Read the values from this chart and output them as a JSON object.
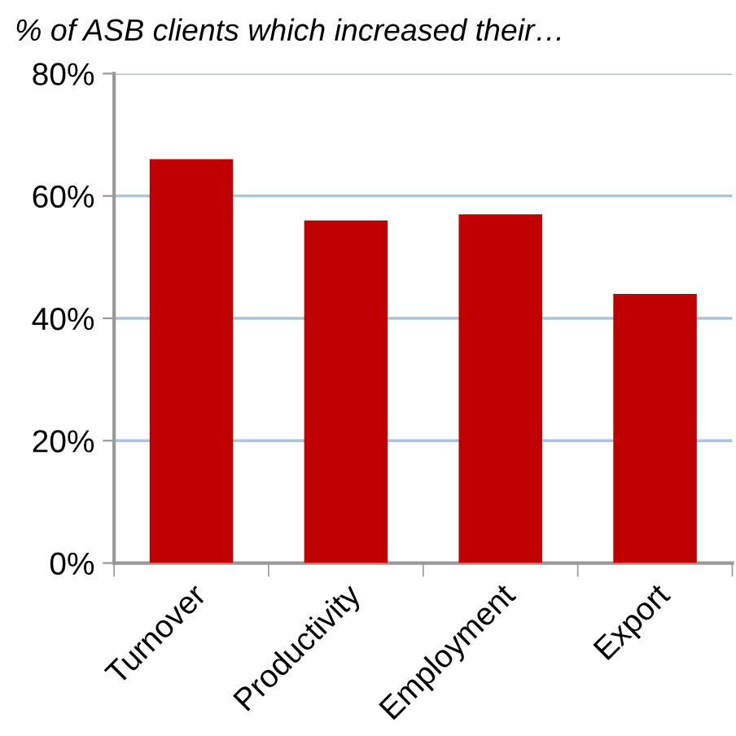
{
  "chart_data": {
    "type": "bar",
    "title": "% of ASB clients which increased their…",
    "categories": [
      "Turnover",
      "Productivity",
      "Employment",
      "Export"
    ],
    "values": [
      66,
      56,
      57,
      44
    ],
    "color": "#c00000",
    "ylim": [
      0,
      80
    ],
    "yticks": [
      {
        "value": 0,
        "label": "0%"
      },
      {
        "value": 20,
        "label": "20%"
      },
      {
        "value": 40,
        "label": "40%"
      },
      {
        "value": 60,
        "label": "60%"
      },
      {
        "value": 80,
        "label": "80%"
      }
    ],
    "grid": "y"
  }
}
